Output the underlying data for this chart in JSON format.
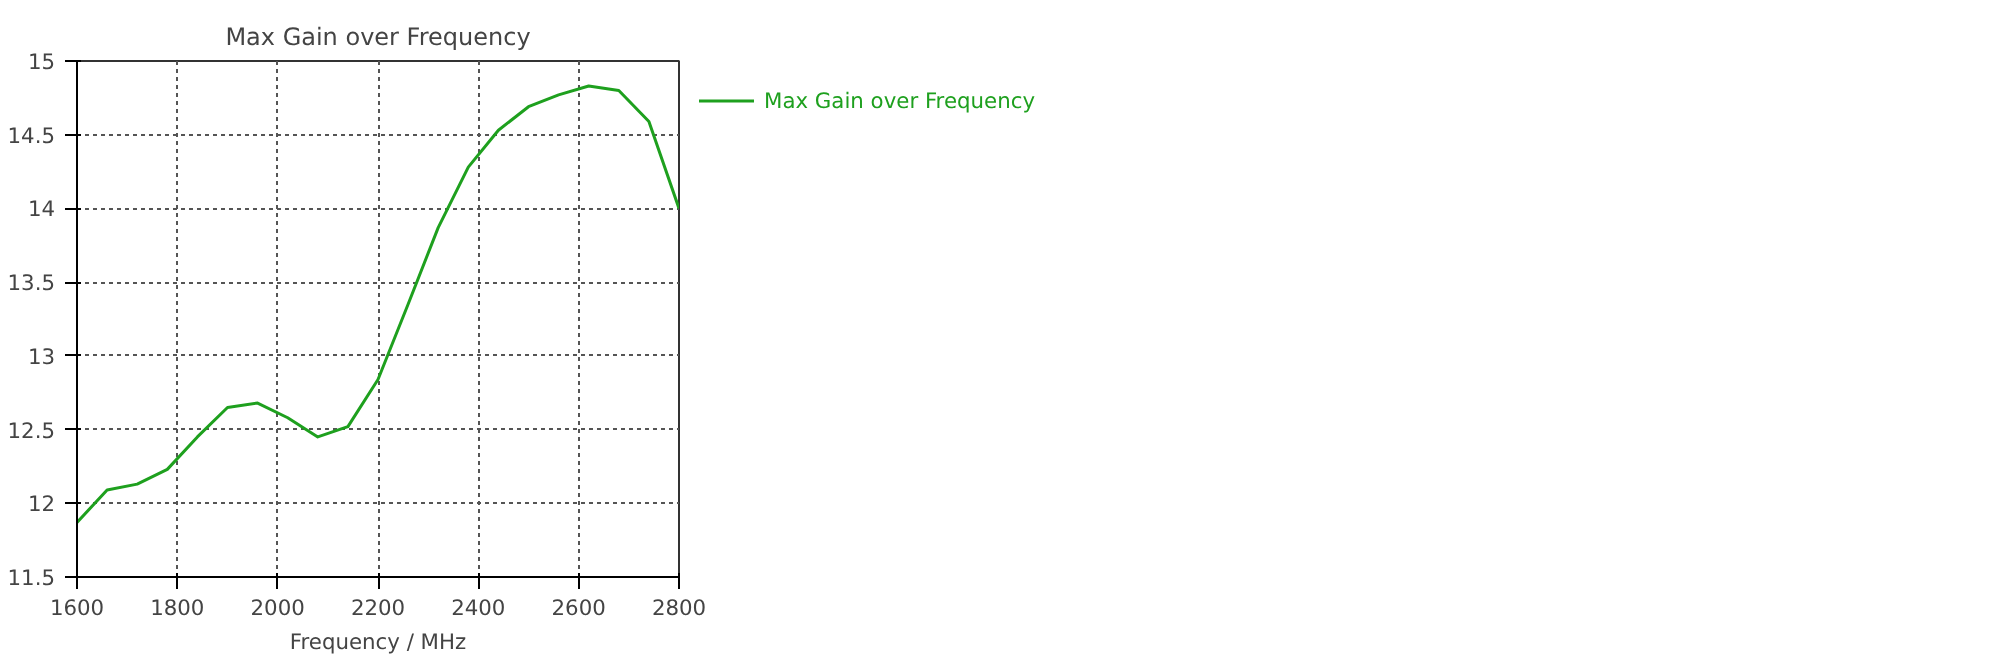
{
  "chart_data": {
    "type": "line",
    "title": "Max Gain over Frequency",
    "xlabel": "Frequency / MHz",
    "x": [
      1600,
      1660,
      1720,
      1780,
      1840,
      1900,
      1960,
      2020,
      2080,
      2140,
      2200,
      2260,
      2320,
      2380,
      2440,
      2500,
      2560,
      2620,
      2680,
      2740,
      2800
    ],
    "series": [
      {
        "name": "Max Gain over Frequency",
        "color": "#1ea01e",
        "values": [
          11.87,
          12.09,
          12.13,
          12.23,
          12.45,
          12.65,
          12.68,
          12.58,
          12.45,
          12.52,
          12.84,
          13.35,
          13.87,
          14.28,
          14.53,
          14.69,
          14.77,
          14.83,
          14.8,
          14.59,
          14.0
        ]
      }
    ],
    "xlim": [
      1600,
      2800
    ],
    "xticks": [
      1600,
      1800,
      2000,
      2200,
      2400,
      2600,
      2800
    ],
    "ylim": [
      11.5,
      15
    ],
    "yticks": [
      11.5,
      12,
      12.5,
      13,
      13.5,
      14,
      14.5,
      15
    ],
    "grid": true,
    "legend": "top right",
    "marker": "none",
    "line_style": "solid"
  }
}
